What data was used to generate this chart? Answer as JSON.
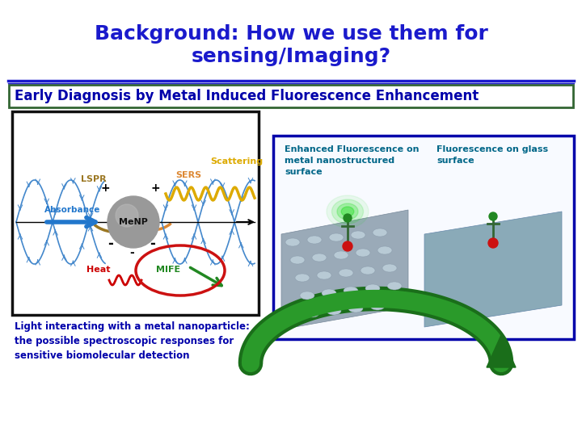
{
  "title_line1": "Background: How we use them for",
  "title_line2": "sensing/Imaging?",
  "title_color": "#1a1aCC",
  "title_fontsize": 18,
  "subtitle": "Early Diagnosis by Metal Induced Fluorescence Enhancement",
  "subtitle_color": "#0000AA",
  "subtitle_fontsize": 12,
  "subtitle_box_edge": "#336633",
  "subtitle_box_fill": "#FFFFFF",
  "caption_text": "Light interacting with a metal nanoparticle:\nthe possible spectroscopic responses for\nsensitive biomolecular detection",
  "caption_color": "#0000AA",
  "caption_fontsize": 8.5,
  "enhanced_label": "Enhanced Fluorescence on\nmetal nanostructured\nsurface",
  "glass_label": "Fluorescence on glass\nsurface",
  "label_color": "#006688",
  "label_fontsize": 8,
  "bg_color": "#FFFFFF",
  "divider_color": "#1a1aCC",
  "left_box_color": "#111111",
  "right_box_color": "#0000AA",
  "right_box_fill": "#FFFFFF",
  "arrow_color": "#1a7a1a",
  "lspr_color": "#9B7722",
  "sers_color": "#DD8833",
  "scattering_color": "#DDAA00",
  "heat_color": "#CC0000",
  "mife_color": "#228822",
  "absorbance_color": "#2277CC",
  "wave_color": "#4488CC",
  "np_color": "#999999"
}
